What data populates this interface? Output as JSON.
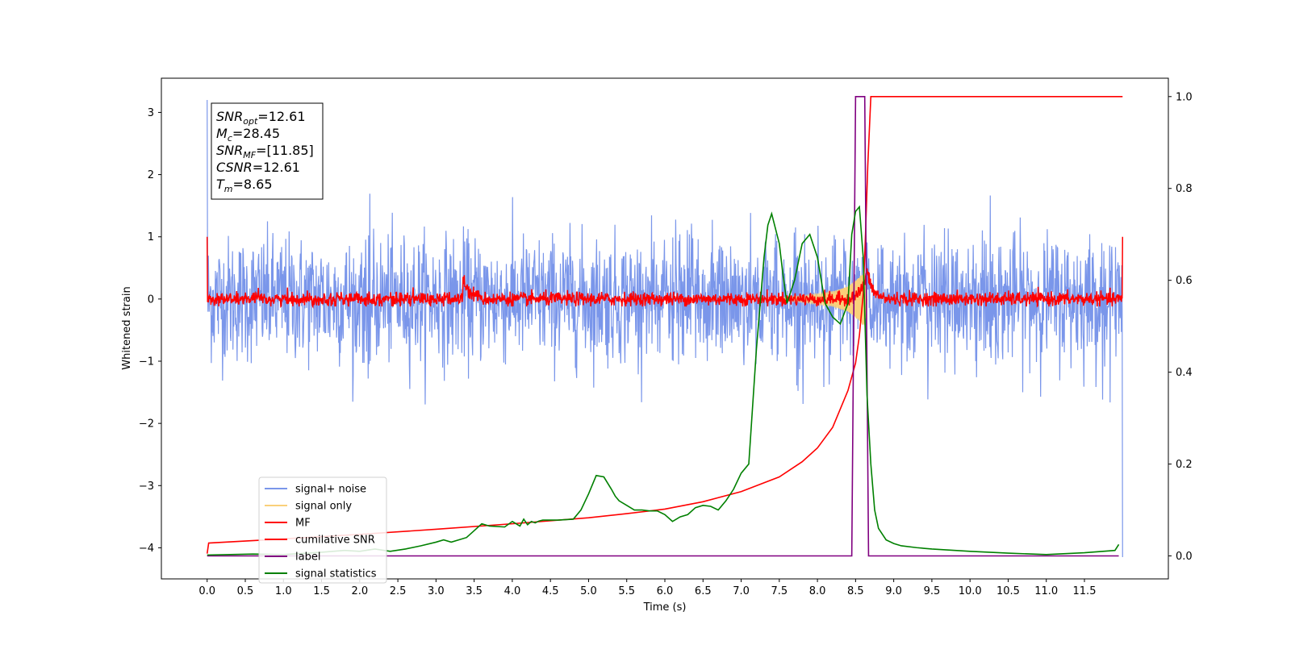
{
  "chart_data": {
    "type": "line",
    "title": "",
    "xlabel": "Time (s)",
    "ylabel": "Whitened strain",
    "xlim": [
      -0.6,
      12.6
    ],
    "ylim": [
      -4.5,
      3.55
    ],
    "y2lim": [
      -0.05,
      1.04
    ],
    "grid": false,
    "legend_location": "lower-left",
    "x_ticks": [
      "0.0",
      "0.5",
      "1.0",
      "1.5",
      "2.0",
      "2.5",
      "3.0",
      "3.5",
      "4.0",
      "4.5",
      "5.0",
      "5.5",
      "6.0",
      "6.5",
      "7.0",
      "7.5",
      "8.0",
      "8.5",
      "9.0",
      "9.5",
      "10.0",
      "10.5",
      "11.0",
      "11.5"
    ],
    "y_ticks": [
      "3",
      "2",
      "1",
      "0",
      "−1",
      "−2",
      "−3",
      "−4"
    ],
    "y2_ticks": [
      "1.0",
      "0.8",
      "0.6",
      "0.4",
      "0.2",
      "0.0"
    ],
    "annotation": {
      "snr_opt": {
        "sym": "SNR",
        "sub": "opt",
        "value": "=12.61"
      },
      "mc": {
        "sym": "M",
        "sub": "c",
        "value": "=28.45"
      },
      "snr_mf": {
        "sym": "SNR",
        "sub": "MF",
        "value": "=[11.85]"
      },
      "csnr": {
        "sym": "CSNR",
        "sub": "",
        "value": "=12.61"
      },
      "tm": {
        "sym": "T",
        "sub": "m",
        "value": "=8.65"
      }
    },
    "series": [
      {
        "name": "signal+ noise",
        "axis": "left",
        "color": "#7a96ea",
        "style": "noise",
        "x_range": [
          0.0,
          12.0
        ],
        "envelope_upper": 1.7,
        "envelope_lower": -1.7,
        "edge_spike_high": 3.2,
        "edge_spike_low": -4.15
      },
      {
        "name": "signal only",
        "axis": "left",
        "color": "#fad07a",
        "style": "chirp",
        "x": [
          7.4,
          7.8,
          8.0,
          8.2,
          8.4,
          8.55,
          8.62,
          8.65
        ],
        "amplitude": [
          0.02,
          0.05,
          0.08,
          0.12,
          0.2,
          0.35,
          0.45,
          0.0
        ]
      },
      {
        "name": "MF",
        "axis": "left",
        "color": "#ff0000",
        "style": "noise",
        "x_range": [
          0.0,
          12.0
        ],
        "envelope_upper": 0.2,
        "envelope_lower": -0.12,
        "bump_x": 3.35,
        "bump_y": 0.4,
        "peak_x": 8.65,
        "peak_y": 0.45
      },
      {
        "name": "cumilative SNR",
        "axis": "right",
        "color": "#ff0000",
        "x": [
          0.0,
          0.02,
          1.0,
          2.0,
          3.0,
          4.0,
          5.0,
          5.5,
          6.0,
          6.5,
          7.0,
          7.5,
          7.8,
          8.0,
          8.2,
          8.4,
          8.5,
          8.55,
          8.6,
          8.63,
          8.66,
          8.7,
          12.0
        ],
        "y": [
          0.005,
          0.028,
          0.037,
          0.047,
          0.058,
          0.07,
          0.083,
          0.092,
          0.102,
          0.118,
          0.14,
          0.172,
          0.205,
          0.235,
          0.28,
          0.36,
          0.42,
          0.48,
          0.57,
          0.7,
          0.85,
          1.0,
          1.0
        ]
      },
      {
        "name": "label",
        "axis": "right",
        "color": "#800080",
        "x": [
          0.0,
          8.45,
          8.5,
          8.62,
          8.67,
          11.95
        ],
        "y": [
          0.0,
          0.0,
          1.0,
          1.0,
          0.0,
          0.0
        ]
      },
      {
        "name": "signal statistics",
        "axis": "right",
        "color": "#008000",
        "x": [
          0.0,
          0.3,
          0.6,
          1.0,
          1.5,
          1.8,
          2.0,
          2.2,
          2.4,
          2.6,
          2.8,
          3.0,
          3.1,
          3.2,
          3.4,
          3.5,
          3.6,
          3.7,
          3.9,
          4.0,
          4.1,
          4.15,
          4.2,
          4.25,
          4.3,
          4.35,
          4.4,
          4.6,
          4.8,
          4.9,
          5.0,
          5.1,
          5.2,
          5.3,
          5.35,
          5.4,
          5.5,
          5.6,
          5.7,
          5.8,
          5.9,
          6.0,
          6.1,
          6.2,
          6.3,
          6.4,
          6.5,
          6.6,
          6.7,
          6.8,
          6.9,
          7.0,
          7.1,
          7.2,
          7.3,
          7.35,
          7.4,
          7.5,
          7.55,
          7.6,
          7.7,
          7.8,
          7.9,
          8.0,
          8.05,
          8.1,
          8.2,
          8.3,
          8.4,
          8.45,
          8.5,
          8.55,
          8.6,
          8.65,
          8.7,
          8.75,
          8.8,
          8.9,
          9.0,
          9.1,
          9.3,
          9.5,
          10.0,
          10.5,
          11.0,
          11.5,
          11.9,
          11.95
        ],
        "y": [
          0.002,
          0.003,
          0.004,
          0.003,
          0.008,
          0.012,
          0.01,
          0.015,
          0.01,
          0.015,
          0.022,
          0.03,
          0.035,
          0.03,
          0.04,
          0.055,
          0.07,
          0.065,
          0.063,
          0.075,
          0.065,
          0.08,
          0.068,
          0.075,
          0.072,
          0.076,
          0.078,
          0.078,
          0.08,
          0.1,
          0.135,
          0.175,
          0.172,
          0.145,
          0.13,
          0.12,
          0.11,
          0.1,
          0.1,
          0.098,
          0.098,
          0.09,
          0.075,
          0.085,
          0.09,
          0.105,
          0.11,
          0.108,
          0.1,
          0.12,
          0.145,
          0.18,
          0.2,
          0.45,
          0.65,
          0.72,
          0.745,
          0.68,
          0.61,
          0.55,
          0.6,
          0.68,
          0.7,
          0.65,
          0.6,
          0.55,
          0.52,
          0.505,
          0.55,
          0.7,
          0.75,
          0.76,
          0.65,
          0.35,
          0.2,
          0.1,
          0.06,
          0.035,
          0.027,
          0.022,
          0.018,
          0.015,
          0.01,
          0.006,
          0.003,
          0.007,
          0.012,
          0.025
        ]
      }
    ]
  }
}
